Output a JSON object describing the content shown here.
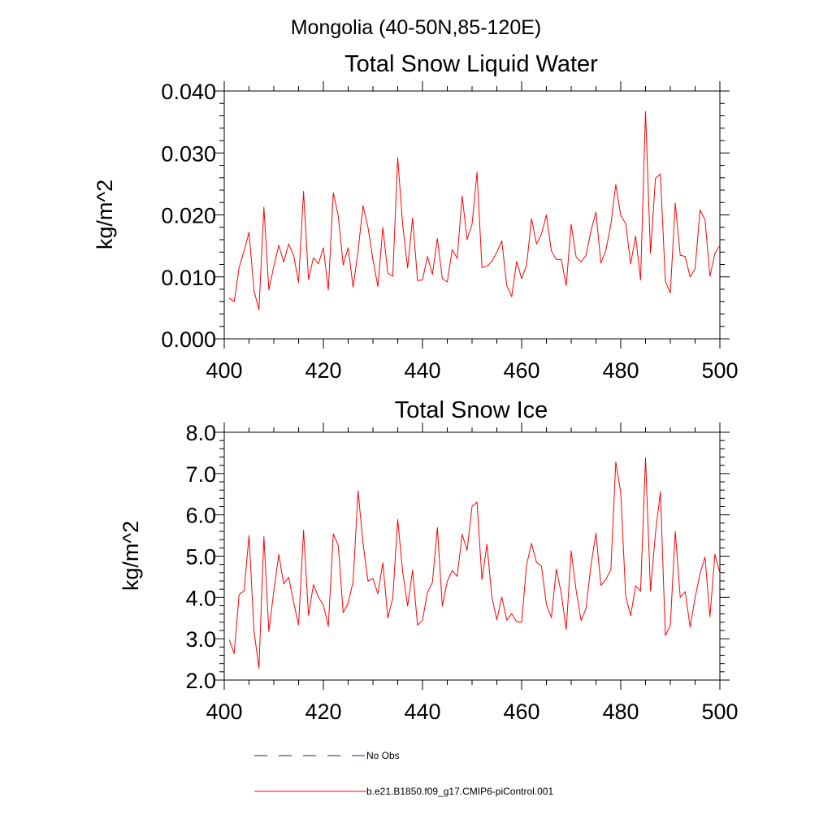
{
  "figure_title": "Mongolia (40-50N,85-120E)",
  "legend": {
    "entries": [
      {
        "label": "No Obs",
        "style": "dashed",
        "color": "#1f1f7a"
      },
      {
        "label": "b.e21.B1850.f09_g17.CMIP6-piControl.001",
        "style": "solid",
        "color": "#ff0000"
      }
    ]
  },
  "chart_data": [
    {
      "type": "line",
      "title": "Total Snow Liquid Water",
      "xlabel": "",
      "ylabel": "kg/m^2",
      "xlim": [
        400,
        500
      ],
      "ylim": [
        0.0,
        0.04
      ],
      "x_ticks": [
        400,
        420,
        440,
        460,
        480,
        500
      ],
      "y_ticks": [
        "0.000",
        "0.010",
        "0.020",
        "0.030",
        "0.040"
      ],
      "y_tick_values": [
        0.0,
        0.01,
        0.02,
        0.03,
        0.04
      ],
      "grid": false,
      "series": [
        {
          "name": "b.e21.B1850.f09_g17.CMIP6-piControl.001",
          "color": "#ff0000",
          "x_start": 401,
          "x_step": 1,
          "values": [
            0.0066,
            0.006,
            0.0115,
            0.0142,
            0.0172,
            0.0078,
            0.0047,
            0.0212,
            0.0079,
            0.0117,
            0.0151,
            0.0124,
            0.0153,
            0.0135,
            0.0091,
            0.0238,
            0.0096,
            0.0131,
            0.0121,
            0.0147,
            0.0079,
            0.0236,
            0.0199,
            0.0119,
            0.0147,
            0.0083,
            0.0142,
            0.0215,
            0.018,
            0.0128,
            0.0084,
            0.018,
            0.0106,
            0.0101,
            0.0292,
            0.0184,
            0.0114,
            0.0195,
            0.0094,
            0.0095,
            0.0133,
            0.0104,
            0.0162,
            0.0097,
            0.0092,
            0.0144,
            0.013,
            0.0231,
            0.016,
            0.0185,
            0.0269,
            0.0115,
            0.0117,
            0.0125,
            0.014,
            0.0158,
            0.0086,
            0.0068,
            0.0125,
            0.0097,
            0.0119,
            0.0194,
            0.0153,
            0.0169,
            0.02,
            0.0142,
            0.0128,
            0.0128,
            0.0086,
            0.0185,
            0.0132,
            0.0124,
            0.0135,
            0.0175,
            0.0204,
            0.0122,
            0.0143,
            0.0184,
            0.0249,
            0.0199,
            0.0186,
            0.0121,
            0.0166,
            0.0095,
            0.0367,
            0.0138,
            0.0259,
            0.0266,
            0.0093,
            0.0074,
            0.0219,
            0.0135,
            0.0133,
            0.01,
            0.0113,
            0.0208,
            0.0192,
            0.0101,
            0.0138,
            0.0151
          ]
        }
      ]
    },
    {
      "type": "line",
      "title": "Total Snow Ice",
      "xlabel": "",
      "ylabel": "kg/m^2",
      "xlim": [
        400,
        500
      ],
      "ylim": [
        2.0,
        8.0
      ],
      "x_ticks": [
        400,
        420,
        440,
        460,
        480,
        500
      ],
      "y_ticks": [
        "2.0",
        "3.0",
        "4.0",
        "5.0",
        "6.0",
        "7.0",
        "8.0"
      ],
      "y_tick_values": [
        2.0,
        3.0,
        4.0,
        5.0,
        6.0,
        7.0,
        8.0
      ],
      "grid": false,
      "series": [
        {
          "name": "b.e21.B1850.f09_g17.CMIP6-piControl.001",
          "color": "#ff0000",
          "x_start": 401,
          "x_step": 1,
          "values": [
            2.98,
            2.64,
            4.07,
            4.16,
            5.5,
            3.19,
            2.29,
            5.47,
            3.17,
            4.15,
            5.04,
            4.33,
            4.49,
            3.88,
            3.34,
            5.63,
            3.57,
            4.31,
            4.01,
            3.81,
            3.3,
            5.54,
            5.26,
            3.63,
            3.86,
            4.39,
            6.58,
            5.31,
            4.4,
            4.46,
            4.09,
            4.84,
            3.5,
            3.99,
            5.89,
            4.62,
            3.79,
            4.66,
            3.33,
            3.45,
            4.12,
            4.36,
            5.69,
            3.79,
            4.39,
            4.65,
            4.51,
            5.53,
            5.14,
            6.21,
            6.31,
            4.43,
            5.29,
            4.01,
            3.46,
            4.01,
            3.45,
            3.61,
            3.41,
            3.4,
            4.79,
            5.31,
            4.85,
            4.76,
            3.83,
            3.51,
            4.69,
            4.1,
            3.22,
            5.13,
            4.17,
            3.44,
            3.74,
            4.79,
            5.55,
            4.29,
            4.44,
            4.67,
            7.28,
            6.53,
            4.03,
            3.56,
            4.28,
            4.15,
            7.38,
            4.16,
            5.55,
            6.56,
            3.08,
            3.32,
            5.6,
            4.0,
            4.14,
            3.28,
            3.99,
            4.58,
            4.98,
            3.53,
            5.05,
            4.59
          ]
        }
      ]
    }
  ]
}
